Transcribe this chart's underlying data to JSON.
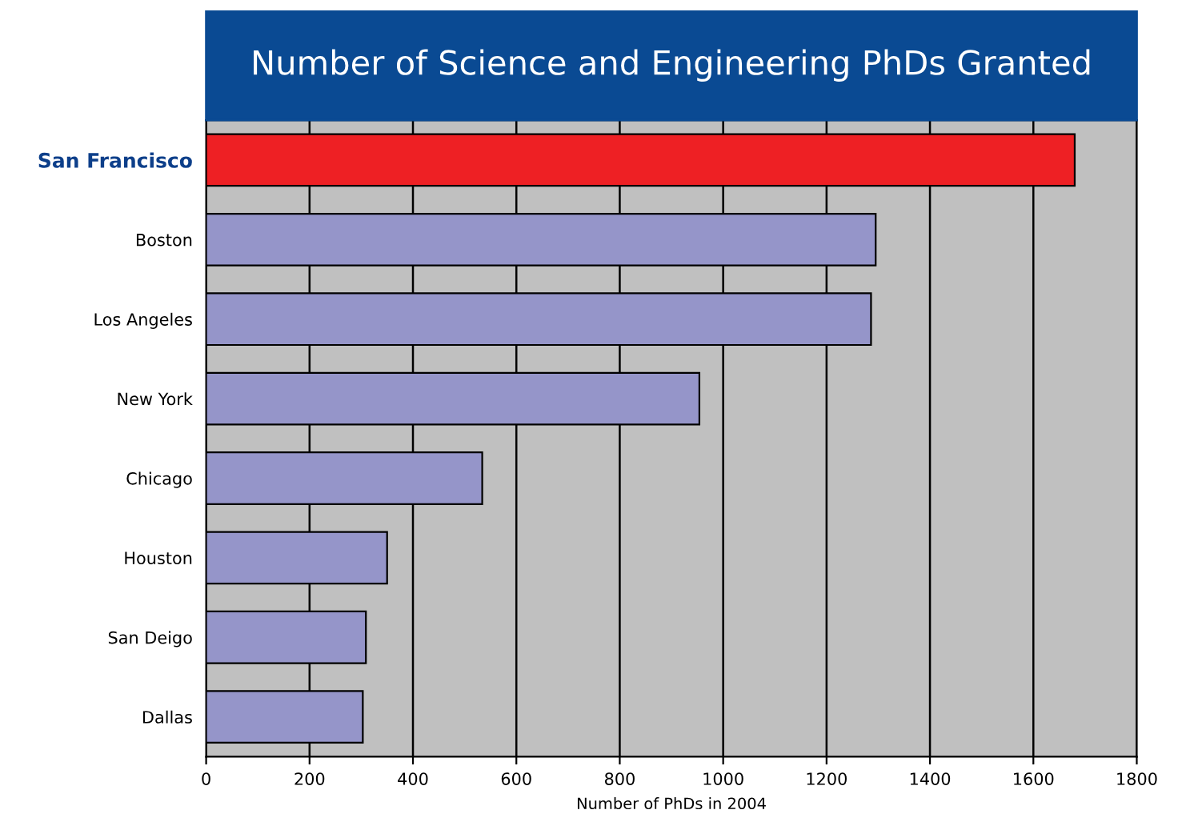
{
  "chart_data": {
    "type": "bar",
    "orientation": "horizontal",
    "title": "Number of Science and Engineering PhDs Granted",
    "xlabel": "Number of PhDs in 2004",
    "categories": [
      "San Francisco",
      "Boston",
      "Los Angeles",
      "New York",
      "Chicago",
      "Houston",
      "San Deigo",
      "Dallas"
    ],
    "values": [
      1680,
      1295,
      1286,
      954,
      534,
      350,
      309,
      303
    ],
    "colors": [
      "#ee2024",
      "#9595c9",
      "#9595c9",
      "#9595c9",
      "#9595c9",
      "#9595c9",
      "#9595c9",
      "#9595c9"
    ],
    "xlim": [
      0,
      1800
    ],
    "xticks": [
      0,
      200,
      400,
      600,
      800,
      1000,
      1200,
      1400,
      1600,
      1800
    ],
    "grid": "x"
  }
}
